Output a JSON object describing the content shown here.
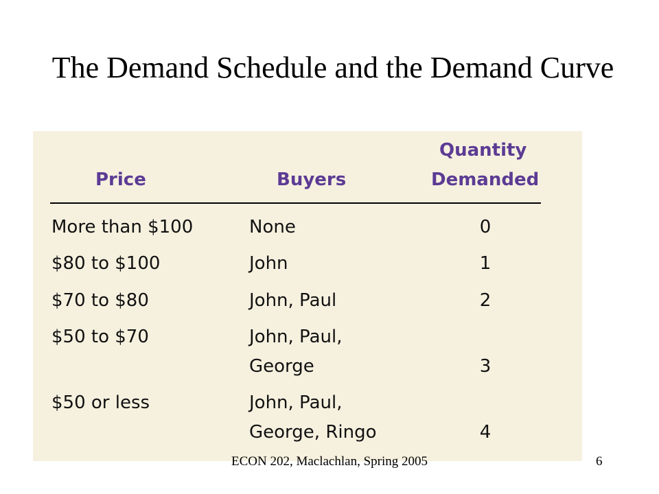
{
  "slide": {
    "title": "The Demand Schedule and the Demand Curve",
    "footer": "ECON 202, Maclachlan, Spring 2005",
    "number": "6"
  },
  "table": {
    "headers": {
      "price": "Price",
      "buyers": "Buyers",
      "quantity_line1": "Quantity",
      "quantity_line2": "Demanded"
    },
    "rows": [
      {
        "price": "More than $100",
        "buyers_line1": "None",
        "buyers_line2": "",
        "quantity": "0"
      },
      {
        "price": "$80 to $100",
        "buyers_line1": "John",
        "buyers_line2": "",
        "quantity": "1"
      },
      {
        "price": "$70 to $80",
        "buyers_line1": "John, Paul",
        "buyers_line2": "",
        "quantity": "2"
      },
      {
        "price": "$50 to $70",
        "buyers_line1": "John, Paul,",
        "buyers_line2": "George",
        "quantity": "3"
      },
      {
        "price": "$50 or less",
        "buyers_line1": "John, Paul,",
        "buyers_line2": "George, Ringo",
        "quantity": "4"
      }
    ]
  },
  "colors": {
    "header_text": "#5c3b94",
    "panel_background": "#f6f1df"
  }
}
